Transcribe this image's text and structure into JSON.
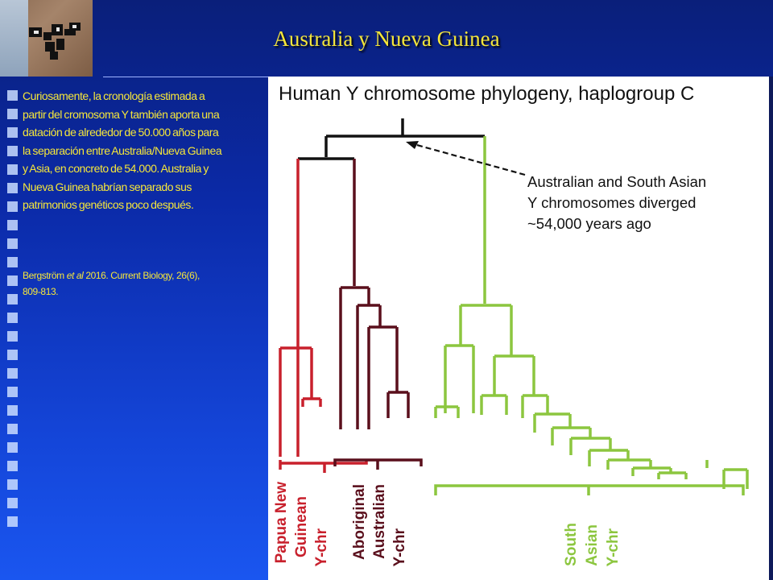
{
  "slide": {
    "title": "Australia y Nueva Guinea",
    "body": "Curiosamente, la cronología estimada a partir del cromosoma Y también aporta una datación de alrededor de 50.000 años para la separación entre Australia/Nueva Guinea y Asia, en concreto de 54.000. Australia y Nueva Guinea habrían separado sus patrimonios genéticos poco después.",
    "citation_author": "Bergström",
    "citation_etal": "et al",
    "citation_rest": "2016. Current Biology, 26(6), 809-813."
  },
  "figure": {
    "title": "Human Y chromosome phylogeny, haplogroup C",
    "annotation": [
      "Australian and South Asian",
      "Y chromosomes diverged",
      "~54,000 years ago"
    ],
    "groups": {
      "papua": [
        "Papua New",
        "Guinean",
        "Y-chr"
      ],
      "aboriginal": [
        "Aboriginal",
        "Australian",
        "Y-chr"
      ],
      "south_asian": [
        "South",
        "Asian",
        "Y-chr"
      ]
    },
    "colors": {
      "papua": "#c8202c",
      "aboriginal": "#5a0f1c",
      "south_asian": "#8cc63f",
      "root": "#111111"
    }
  }
}
